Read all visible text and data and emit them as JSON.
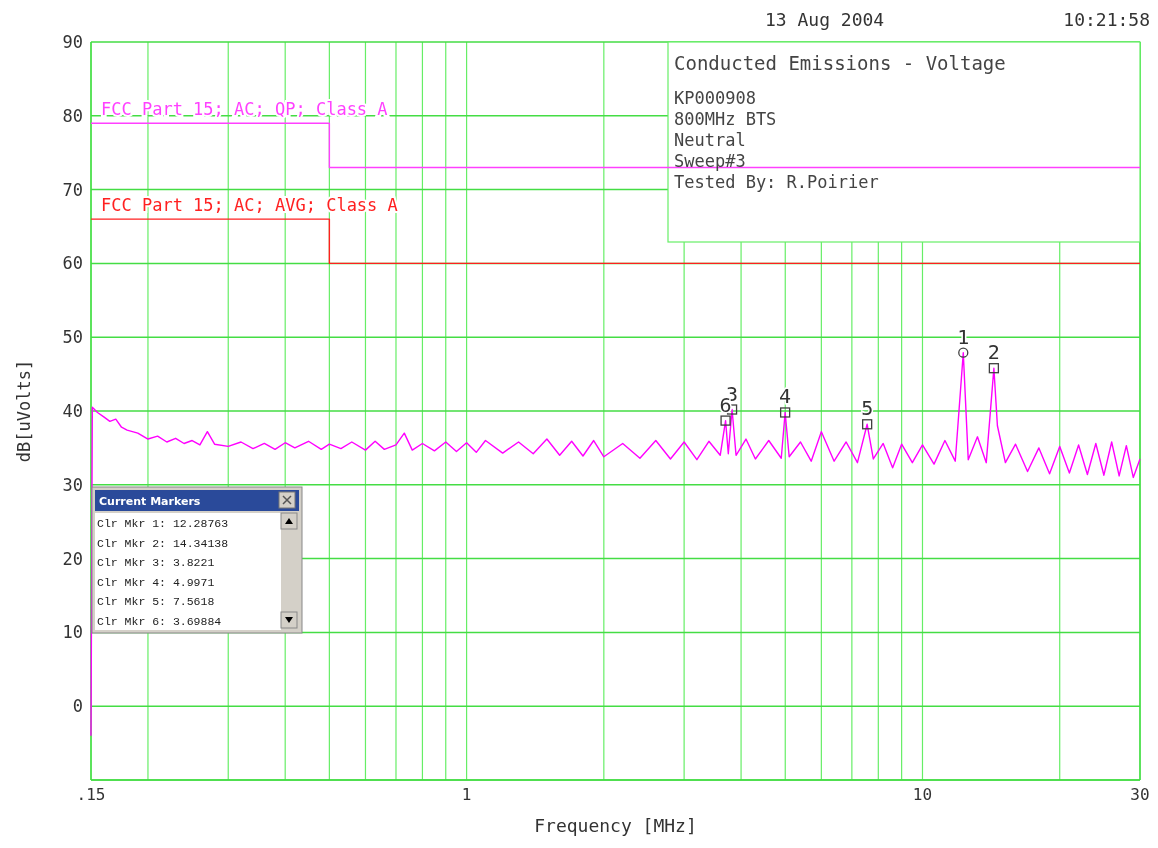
{
  "chart_data": {
    "type": "line",
    "title": "Conducted Emissions - Voltage",
    "xlabel": "Frequency [MHz]",
    "ylabel": "dB[uVolts]",
    "log": "x",
    "grid": true,
    "legend": false,
    "xlim": [
      0.15,
      30
    ],
    "xticks": [
      {
        "value": 0.15,
        "label": ".15"
      },
      {
        "value": 0.2,
        "label": null
      },
      {
        "value": 0.3,
        "label": null
      },
      {
        "value": 0.4,
        "label": null
      },
      {
        "value": 0.5,
        "label": null
      },
      {
        "value": 0.6,
        "label": null
      },
      {
        "value": 0.7,
        "label": null
      },
      {
        "value": 0.8,
        "label": null
      },
      {
        "value": 0.9,
        "label": null
      },
      1,
      {
        "value": 2,
        "label": null
      },
      {
        "value": 3,
        "label": null
      },
      {
        "value": 4,
        "label": null
      },
      {
        "value": 5,
        "label": null
      },
      {
        "value": 6,
        "label": null
      },
      {
        "value": 7,
        "label": null
      },
      {
        "value": 8,
        "label": null
      },
      {
        "value": 9,
        "label": null
      },
      10,
      {
        "value": 20,
        "label": null
      },
      30
    ],
    "ylim": [
      -10,
      90
    ],
    "yticks": [
      {
        "value": -10,
        "label": null
      },
      0,
      10,
      20,
      30,
      40,
      50,
      60,
      70,
      80,
      90
    ],
    "series": [
      {
        "type": "line",
        "color": "#ff00ff",
        "x": [
          0.15,
          0.151,
          0.155,
          0.16,
          0.165,
          0.17,
          0.175,
          0.18,
          0.19,
          0.2,
          0.21,
          0.22,
          0.23,
          0.24,
          0.25,
          0.26,
          0.27,
          0.28,
          0.3,
          0.32,
          0.34,
          0.36,
          0.38,
          0.4,
          0.42,
          0.45,
          0.48,
          0.5,
          0.53,
          0.56,
          0.6,
          0.63,
          0.66,
          0.7,
          0.73,
          0.76,
          0.8,
          0.85,
          0.9,
          0.95,
          1.0,
          1.05,
          1.1,
          1.2,
          1.3,
          1.4,
          1.5,
          1.6,
          1.7,
          1.8,
          1.9,
          2.0,
          2.2,
          2.4,
          2.6,
          2.8,
          3.0,
          3.2,
          3.4,
          3.6,
          3.69884,
          3.75,
          3.8221,
          3.9,
          4.1,
          4.3,
          4.6,
          4.9,
          4.9971,
          5.1,
          5.4,
          5.7,
          6.0,
          6.4,
          6.8,
          7.2,
          7.5618,
          7.8,
          8.2,
          8.6,
          9.0,
          9.5,
          10,
          10.6,
          11.2,
          11.8,
          12.28763,
          12.6,
          13.2,
          13.8,
          14.34138,
          14.6,
          15.2,
          16,
          17,
          18,
          19,
          20,
          21,
          22,
          23,
          24,
          25,
          26,
          27,
          28,
          29,
          30
        ],
        "values": [
          -4,
          40.5,
          39.8,
          39.2,
          38.6,
          38.9,
          37.8,
          37.4,
          37.0,
          36.2,
          36.6,
          35.8,
          36.3,
          35.6,
          36.0,
          35.4,
          37.2,
          35.5,
          35.2,
          35.8,
          34.9,
          35.6,
          34.8,
          35.7,
          35.0,
          35.9,
          34.8,
          35.5,
          34.9,
          35.8,
          34.7,
          35.9,
          34.8,
          35.4,
          37.0,
          34.7,
          35.6,
          34.6,
          35.8,
          34.5,
          35.7,
          34.4,
          36.0,
          34.3,
          35.8,
          34.2,
          36.2,
          34.0,
          35.9,
          33.9,
          36.0,
          33.8,
          35.6,
          33.6,
          36.0,
          33.5,
          35.8,
          33.4,
          35.9,
          34.0,
          38.7,
          34.2,
          40.2,
          34.0,
          36.2,
          33.5,
          36.0,
          33.6,
          39.8,
          33.8,
          35.8,
          33.2,
          37.2,
          33.2,
          35.8,
          33.0,
          38.2,
          33.5,
          35.6,
          32.3,
          35.5,
          33.0,
          35.4,
          32.8,
          36.0,
          33.2,
          47.9,
          33.4,
          36.5,
          33.0,
          45.8,
          38.0,
          33.0,
          35.5,
          31.8,
          35.0,
          31.5,
          35.2,
          31.6,
          35.4,
          31.4,
          35.6,
          31.3,
          35.8,
          31.2,
          35.3,
          31.0,
          33.5
        ]
      },
      {
        "type": "step",
        "name": "FCC Part 15; AC; QP; Class A",
        "color": "#ff40ff",
        "x": [
          0.15,
          0.5,
          30
        ],
        "values": [
          79,
          73,
          73
        ]
      },
      {
        "type": "step",
        "name": "FCC Part 15; AC; AVG; Class A",
        "color": "#ff2020",
        "x": [
          0.15,
          0.5,
          30
        ],
        "values": [
          66,
          60,
          60
        ]
      },
      {
        "type": "scatter",
        "marker": "circle",
        "color": "#404040",
        "x": [
          12.28763
        ],
        "values": [
          47.9
        ]
      },
      {
        "type": "scatter",
        "marker": "square",
        "color": "#404040",
        "x": [
          14.34138,
          3.8221,
          4.9971,
          7.5618,
          3.69884
        ],
        "values": [
          45.8,
          40.2,
          39.8,
          38.2,
          38.7
        ]
      }
    ],
    "annotations": [
      "13 Aug 2004",
      "10:21:58",
      "KP000908",
      "800MHz BTS",
      "Neutral",
      "Sweep#3",
      "Tested By: R.Poirier",
      "Current Markers",
      "Clr Mkr 1: 12.28763",
      "Clr Mkr 2: 14.34138",
      "Clr Mkr 3: 3.8221",
      "Clr Mkr 4: 4.9971",
      "Clr Mkr 5: 7.5618",
      "Clr Mkr 6: 3.69884",
      {
        "text": "1",
        "x": 12.28763,
        "y": 47.9
      },
      {
        "text": "2",
        "x": 14.34138,
        "y": 45.8
      },
      {
        "text": "3",
        "x": 3.8221,
        "y": 40.2
      },
      {
        "text": "4",
        "x": 4.9971,
        "y": 39.8
      },
      {
        "text": "5",
        "x": 7.5618,
        "y": 38.2
      },
      {
        "text": "6",
        "x": 3.69884,
        "y": 38.7
      }
    ]
  }
}
